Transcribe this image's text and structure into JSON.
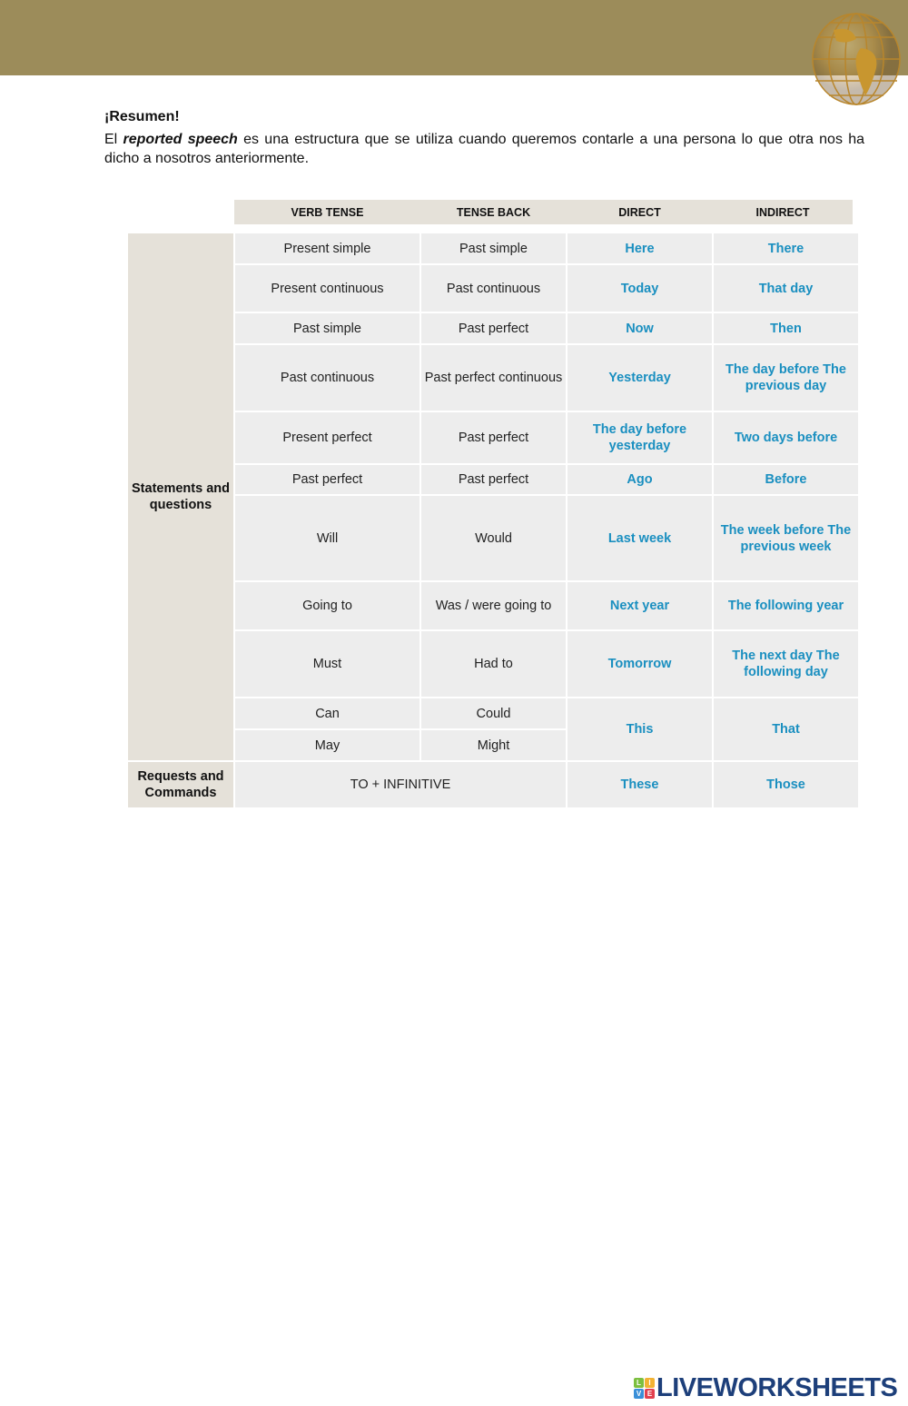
{
  "summary": {
    "title": "¡Resumen!",
    "intro_prefix": "El ",
    "intro_emphasis": "reported speech",
    "intro_rest": " es una estructura que se utiliza cuando queremos contarle a una persona lo que otra nos ha dicho a nosotros anteriormente."
  },
  "table": {
    "headers": [
      "VERB TENSE",
      "TENSE BACK",
      "DIRECT",
      "INDIRECT"
    ],
    "group1": "Statements and questions",
    "group2": "Requests and Commands",
    "rows": [
      [
        "Present simple",
        "Past simple",
        "Here",
        "There"
      ],
      [
        "Present continuous",
        "Past continuous",
        "Today",
        "That day"
      ],
      [
        "Past simple",
        "Past perfect",
        "Now",
        "Then"
      ],
      [
        "Past continuous",
        "Past perfect continuous",
        "Yesterday",
        "The day before The previous day"
      ],
      [
        "Present perfect",
        "Past perfect",
        "The day before yesterday",
        "Two days before"
      ],
      [
        "Past perfect",
        "Past perfect",
        "Ago",
        "Before"
      ],
      [
        "Will",
        "Would",
        "Last week",
        "The week before The previous week"
      ],
      [
        "Going to",
        "Was / were going to",
        "Next year",
        "The following year"
      ],
      [
        "Must",
        "Had to",
        "Tomorrow",
        "The next day The following day"
      ],
      [
        "Can",
        "Could",
        "This",
        "That"
      ],
      [
        "May",
        "Might"
      ]
    ],
    "requests": [
      "TO + INFINITIVE",
      "These",
      "Those"
    ]
  },
  "logo": {
    "text": "LIVEWORKSHEETS",
    "letters": [
      "L",
      "I",
      "V",
      "E"
    ]
  },
  "colors": {
    "banner": "#9c8c5a",
    "accent": "#1a8fc0",
    "logo": "#1d3f7a"
  }
}
